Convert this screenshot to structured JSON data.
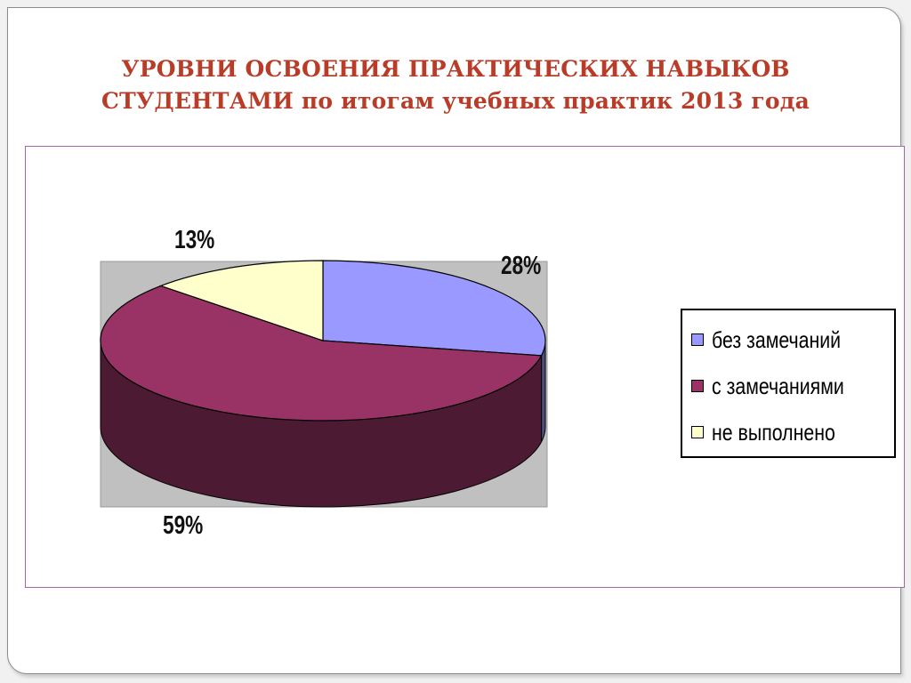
{
  "slide": {
    "title_line1": "УРОВНИ ОСВОЕНИЯ ПРАКТИЧЕСКИХ НАВЫКОВ",
    "title_line2": "СТУДЕНТАМИ по итогам учебных практик 2013 года",
    "title_color": "#b93c28"
  },
  "chart_data": {
    "type": "pie",
    "style": "3d",
    "title": "УРОВНИ ОСВОЕНИЯ ПРАКТИЧЕСКИХ НАВЫКОВ СТУДЕНТАМИ по итогам учебных практик 2013 года",
    "categories": [
      "без замечаний",
      "с замечаниями",
      "не выполнено"
    ],
    "values": [
      28,
      59,
      13
    ],
    "data_labels": [
      "28%",
      "59%",
      "13%"
    ],
    "colors": [
      "#9999ff",
      "#993366",
      "#ffffcc"
    ],
    "legend_position": "right"
  }
}
